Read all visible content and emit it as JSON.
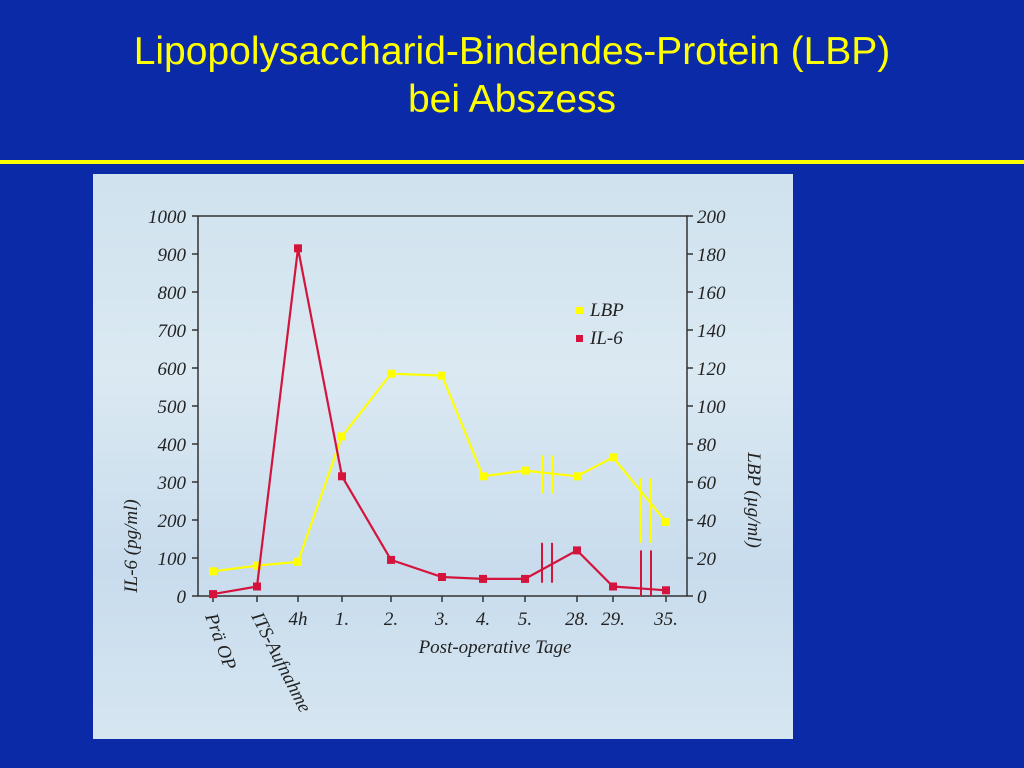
{
  "slide": {
    "title_line1": "Lipopolysaccharid-Bindendes-Protein (LBP)",
    "title_line2": "bei Abszess"
  },
  "colors": {
    "background": "#0a2aa8",
    "title": "#ffff00",
    "lbp": "#ffff00",
    "il6": "#d4143c"
  },
  "chart_data": {
    "type": "line",
    "xlabel": "Post-operative Tage",
    "categories": [
      "Prä OP",
      "ITS-Aufnahme",
      "4h",
      "1.",
      "2.",
      "3.",
      "4.",
      "5.",
      "28.",
      "29.",
      "35."
    ],
    "series": [
      {
        "name": "LBP",
        "axis": "right",
        "color": "#ffff00",
        "values": [
          13,
          16,
          18,
          84,
          117,
          116,
          63,
          66,
          63,
          73,
          39
        ]
      },
      {
        "name": "IL-6",
        "axis": "left",
        "color": "#d4143c",
        "values": [
          5,
          25,
          915,
          315,
          95,
          50,
          45,
          45,
          120,
          25,
          15
        ]
      }
    ],
    "y_left": {
      "label": "IL-6 (pg/ml)",
      "ylim": [
        0,
        1000
      ],
      "ticks": [
        "0",
        "100",
        "200",
        "300",
        "400",
        "500",
        "600",
        "700",
        "800",
        "900",
        "1000"
      ]
    },
    "y_right": {
      "label": "LBP (µg/ml)",
      "ylim": [
        0,
        200
      ],
      "ticks": [
        "0",
        "20",
        "40",
        "60",
        "80",
        "100",
        "120",
        "140",
        "160",
        "180",
        "200"
      ]
    },
    "legend": {
      "position": "top-right",
      "entries": [
        "LBP",
        "IL-6"
      ]
    },
    "axis_breaks": [
      "between 5. and 28.",
      "between 29. and 35."
    ]
  }
}
